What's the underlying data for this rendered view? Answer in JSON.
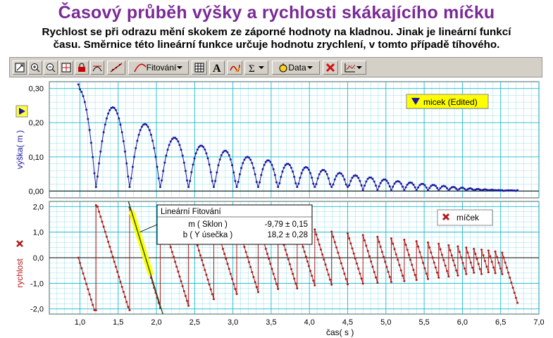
{
  "header": {
    "title": "Časový průběh výšky a rychlosti skákajícího míčku",
    "line1": "Rychlost se při odrazu mění skokem ze záporné hodnoty na kladnou. Jinak je lineární funkcí",
    "line2": "času. Směrnice této lineární funkce určuje hodnotu zrychlení, v tomto případě tíhového."
  },
  "toolbar": {
    "fit_label": "Fitování",
    "data_label": "Data",
    "icons": [
      "autoscale-icon",
      "zoom-in-icon",
      "zoom-out-icon",
      "examine-icon",
      "lock-icon",
      "tangent-icon",
      "linear-fit-icon",
      "curve-fit-icon",
      "table-icon",
      "text-annotation-icon",
      "draw-icon",
      "statistics-icon",
      "data-icon",
      "delete-icon",
      "graph-options-icon"
    ]
  },
  "colors": {
    "height_series": "#1a1aa0",
    "velocity_series": "#b01818",
    "grid": "#00b4c8",
    "fit_highlight": "#ffff00",
    "fit_line": "#205020"
  },
  "chart_data": [
    {
      "type": "scatter",
      "ylabel": "výška( m )",
      "ylim": [
        -0.02,
        0.32
      ],
      "yticks": [
        "0,00",
        "0,10",
        "0,20",
        "0,30"
      ],
      "ytick_values": [
        0,
        0.1,
        0.2,
        0.3
      ],
      "xlim": [
        0.6,
        7.0
      ],
      "legend": {
        "label": "micek (Edited)",
        "position": "top-right"
      },
      "bounces": [
        {
          "t0": 0.98,
          "t1": 1.21,
          "peak": 0.3,
          "half": true
        },
        {
          "t0": 1.21,
          "t1": 1.65,
          "peak": 0.245
        },
        {
          "t0": 1.65,
          "t1": 2.05,
          "peak": 0.196
        },
        {
          "t0": 2.05,
          "t1": 2.42,
          "peak": 0.156
        },
        {
          "t0": 2.42,
          "t1": 2.75,
          "peak": 0.133
        },
        {
          "t0": 2.75,
          "t1": 3.05,
          "peak": 0.118
        },
        {
          "t0": 3.05,
          "t1": 3.33,
          "peak": 0.1
        },
        {
          "t0": 3.33,
          "t1": 3.59,
          "peak": 0.09
        },
        {
          "t0": 3.59,
          "t1": 3.84,
          "peak": 0.08
        },
        {
          "t0": 3.84,
          "t1": 4.07,
          "peak": 0.07
        },
        {
          "t0": 4.07,
          "t1": 4.29,
          "peak": 0.062
        },
        {
          "t0": 4.29,
          "t1": 4.5,
          "peak": 0.053
        },
        {
          "t0": 4.5,
          "t1": 4.7,
          "peak": 0.046
        },
        {
          "t0": 4.7,
          "t1": 4.89,
          "peak": 0.04
        },
        {
          "t0": 4.89,
          "t1": 5.07,
          "peak": 0.034
        },
        {
          "t0": 5.07,
          "t1": 5.24,
          "peak": 0.029
        },
        {
          "t0": 5.24,
          "t1": 5.4,
          "peak": 0.025
        },
        {
          "t0": 5.4,
          "t1": 5.55,
          "peak": 0.021
        },
        {
          "t0": 5.55,
          "t1": 5.69,
          "peak": 0.018
        },
        {
          "t0": 5.69,
          "t1": 5.82,
          "peak": 0.015
        },
        {
          "t0": 5.82,
          "t1": 5.94,
          "peak": 0.012
        },
        {
          "t0": 5.94,
          "t1": 6.05,
          "peak": 0.01
        },
        {
          "t0": 6.05,
          "t1": 6.15,
          "peak": 0.008
        },
        {
          "t0": 6.15,
          "t1": 6.25,
          "peak": 0.006
        },
        {
          "t0": 6.25,
          "t1": 6.34,
          "peak": 0.005
        },
        {
          "t0": 6.34,
          "t1": 6.43,
          "peak": 0.004
        },
        {
          "t0": 6.43,
          "t1": 6.52,
          "peak": 0.003
        },
        {
          "t0": 6.52,
          "t1": 6.72,
          "peak": 0.002
        }
      ],
      "sample_step": 0.02
    },
    {
      "type": "scatter",
      "ylabel": "rychlost",
      "ylim": [
        -2.2,
        2.2
      ],
      "yticks": [
        "-2,0",
        "-1,0",
        "0,0",
        "1,0",
        "2,0"
      ],
      "ytick_values": [
        -2,
        -1,
        0,
        1,
        2
      ],
      "xlim": [
        0.6,
        7.0
      ],
      "xlabel": "čas( s )",
      "xticks": [
        "1,0",
        "1,5",
        "2,0",
        "2,5",
        "3,0",
        "3,5",
        "4,0",
        "4,5",
        "5,0",
        "5,5",
        "6,0",
        "6,5",
        "7,0"
      ],
      "xtick_values": [
        1.0,
        1.5,
        2.0,
        2.5,
        3.0,
        3.5,
        4.0,
        4.5,
        5.0,
        5.5,
        6.0,
        6.5,
        7.0
      ],
      "legend": {
        "label": "míček",
        "position": "top-right"
      },
      "fit": {
        "title": "Lineární Fitování",
        "rows": [
          {
            "name": "m ( Sklon )",
            "value": "-9,79 ± 0,15"
          },
          {
            "name": "b ( Y úsečka )",
            "value": "18,2 ± 0,28"
          }
        ],
        "slope": -9.79,
        "intercept": 18.2,
        "range": [
          1.68,
          1.92
        ]
      }
    }
  ]
}
